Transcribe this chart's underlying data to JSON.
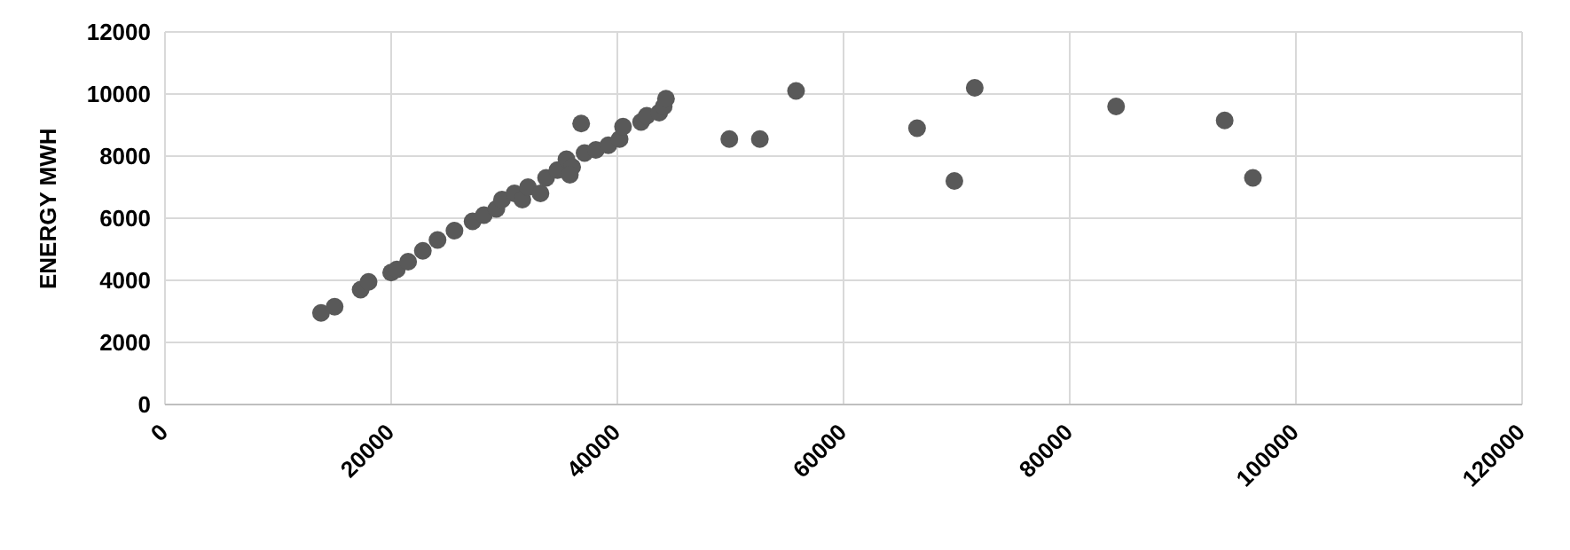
{
  "chart_data": {
    "type": "scatter",
    "ylabel": "ENERGY MWH",
    "xlim": [
      0,
      120000
    ],
    "xticks": [
      0,
      20000,
      40000,
      60000,
      80000,
      100000,
      120000
    ],
    "ylim": [
      0,
      12000
    ],
    "yticks": [
      0,
      2000,
      4000,
      6000,
      8000,
      10000,
      12000
    ],
    "grid": true,
    "marker": "circle",
    "series": [
      {
        "color": "#595959",
        "x": [
          13800,
          15000,
          17300,
          18000,
          20000,
          20500,
          21500,
          22800,
          24100,
          25600,
          27200,
          28200,
          29300,
          29800,
          30900,
          31600,
          32100,
          33200,
          33700,
          34700,
          35500,
          36000,
          35800,
          36800,
          37100,
          38100,
          39200,
          40200,
          40500,
          42100,
          42600,
          43700,
          44100,
          44300,
          49900,
          52600,
          55800,
          66500,
          71600,
          69800,
          84100,
          93700,
          96200
        ],
        "values": [
          2950,
          3150,
          3700,
          3950,
          4250,
          4350,
          4600,
          4950,
          5300,
          5600,
          5900,
          6100,
          6300,
          6600,
          6800,
          6600,
          7000,
          6800,
          7300,
          7550,
          7900,
          7650,
          7400,
          9050,
          8100,
          8200,
          8350,
          8550,
          8950,
          9100,
          9300,
          9400,
          9600,
          9850,
          8550,
          8550,
          10100,
          8900,
          10200,
          7200,
          9600,
          9150,
          7300
        ]
      }
    ]
  }
}
